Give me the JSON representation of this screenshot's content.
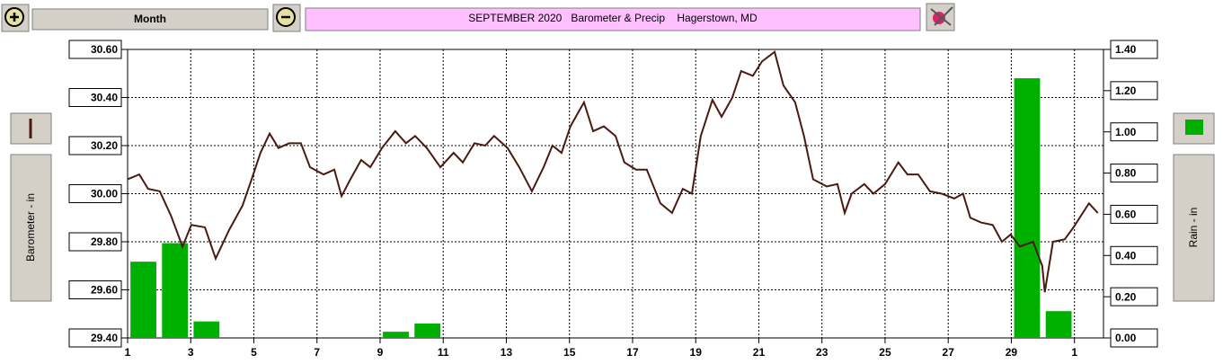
{
  "toolbar": {
    "period": "Month"
  },
  "chart_data": {
    "type": "bar-line",
    "title": "SEPTEMBER 2020   Barometer & Precip    Hagerstown, MD",
    "y_label": "Barometer - in",
    "y2_label": "Rain - in",
    "xlim": [
      0,
      30.92
    ],
    "xticks": [
      {
        "value": 0,
        "label": "1"
      },
      {
        "value": 2,
        "label": "3"
      },
      {
        "value": 4,
        "label": "5"
      },
      {
        "value": 6,
        "label": "7"
      },
      {
        "value": 8,
        "label": "9"
      },
      {
        "value": 10,
        "label": "11"
      },
      {
        "value": 12,
        "label": "13"
      },
      {
        "value": 14,
        "label": "15"
      },
      {
        "value": 16,
        "label": "17"
      },
      {
        "value": 18,
        "label": "19"
      },
      {
        "value": 20,
        "label": "21"
      },
      {
        "value": 22,
        "label": "23"
      },
      {
        "value": 24,
        "label": "25"
      },
      {
        "value": 26,
        "label": "27"
      },
      {
        "value": 28,
        "label": "29"
      },
      {
        "value": 30,
        "label": "1"
      }
    ],
    "ylim": [
      29.4,
      30.6
    ],
    "yticks": [
      {
        "value": 29.4,
        "label": "29.40"
      },
      {
        "value": 29.6,
        "label": "29.60"
      },
      {
        "value": 29.8,
        "label": "29.80"
      },
      {
        "value": 30.0,
        "label": "30.00"
      },
      {
        "value": 30.2,
        "label": "30.20"
      },
      {
        "value": 30.4,
        "label": "30.40"
      },
      {
        "value": 30.6,
        "label": "30.60"
      }
    ],
    "y2lim": [
      0,
      1.4
    ],
    "y2ticks": [
      {
        "value": 0,
        "label": "0.00"
      },
      {
        "value": 0.2,
        "label": "0.20"
      },
      {
        "value": 0.4,
        "label": "0.40"
      },
      {
        "value": 0.6,
        "label": "0.60"
      },
      {
        "value": 0.8,
        "label": "0.80"
      },
      {
        "value": 1.0,
        "label": "1.00"
      },
      {
        "value": 1.2,
        "label": "1.20"
      },
      {
        "value": 1.4,
        "label": "1.40"
      }
    ],
    "grid": true,
    "series": [
      {
        "kind": "line",
        "color": "#4a1a10",
        "x": [
          0,
          0.37,
          0.65,
          1.02,
          1.37,
          1.74,
          2.02,
          2.45,
          2.79,
          3.22,
          3.64,
          3.93,
          4.21,
          4.5,
          4.78,
          5.12,
          5.49,
          5.78,
          6.21,
          6.55,
          6.78,
          7.06,
          7.4,
          7.69,
          8.06,
          8.48,
          8.82,
          9.11,
          9.48,
          9.91,
          10.33,
          10.62,
          10.99,
          11.33,
          11.61,
          12.04,
          12.41,
          12.81,
          13.18,
          13.46,
          13.75,
          14.03,
          14.46,
          14.75,
          15.09,
          15.46,
          15.74,
          16.11,
          16.45,
          16.88,
          17.25,
          17.59,
          17.88,
          18.16,
          18.53,
          18.82,
          19.16,
          19.44,
          19.81,
          20.1,
          20.5,
          20.78,
          21.15,
          21.43,
          21.72,
          22.15,
          22.49,
          22.72,
          22.94,
          23.34,
          23.63,
          24,
          24.42,
          24.71,
          25.05,
          25.42,
          25.79,
          26.19,
          26.47,
          26.7,
          27.04,
          27.41,
          27.7,
          27.98,
          28.27,
          28.69,
          28.98,
          29.06,
          29.32,
          29.69,
          29.97,
          30.46,
          30.74
        ],
        "values": [
          30.06,
          30.08,
          30.02,
          30.01,
          29.91,
          29.78,
          29.87,
          29.86,
          29.73,
          29.85,
          29.95,
          30.06,
          30.17,
          30.25,
          30.19,
          30.21,
          30.21,
          30.11,
          30.08,
          30.1,
          29.99,
          30.06,
          30.14,
          30.11,
          30.19,
          30.26,
          30.21,
          30.24,
          30.19,
          30.11,
          30.17,
          30.13,
          30.21,
          30.2,
          30.24,
          30.19,
          30.11,
          30.01,
          30.11,
          30.2,
          30.17,
          30.28,
          30.38,
          30.26,
          30.28,
          30.24,
          30.13,
          30.1,
          30.1,
          29.96,
          29.92,
          30.02,
          30.0,
          30.24,
          30.39,
          30.32,
          30.4,
          30.51,
          30.49,
          30.55,
          30.59,
          30.45,
          30.38,
          30.24,
          30.06,
          30.03,
          30.04,
          29.92,
          30.0,
          30.04,
          30.0,
          30.04,
          30.13,
          30.08,
          30.08,
          30.01,
          30.0,
          29.98,
          30.0,
          29.9,
          29.88,
          29.87,
          29.8,
          29.83,
          29.78,
          29.8,
          29.7,
          29.59,
          29.8,
          29.81,
          29.86,
          29.96,
          29.92
        ]
      },
      {
        "kind": "bar",
        "axis": "y2",
        "color": "#00b000",
        "x": [
          0.5,
          1.5,
          2.5,
          8.5,
          9.5,
          28.5,
          29.5
        ],
        "values": [
          0.37,
          0.46,
          0.08,
          0.03,
          0.07,
          1.26,
          0.13
        ]
      }
    ]
  }
}
